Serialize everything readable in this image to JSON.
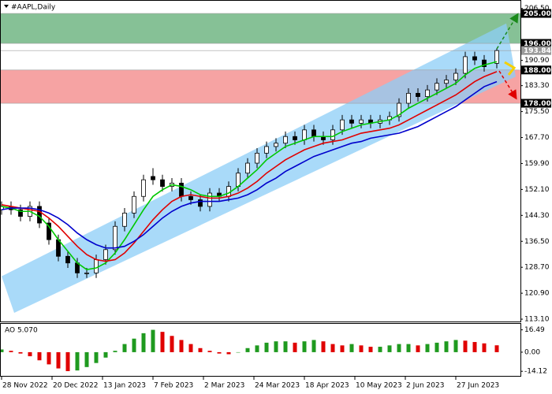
{
  "chart_data": [
    {
      "type": "candlestick",
      "title": "#AAPL,Daily",
      "x": [
        0,
        3,
        6,
        9,
        12,
        15,
        18,
        21,
        24,
        27,
        30,
        33,
        36,
        39,
        42,
        45,
        48,
        51,
        54,
        57,
        60,
        63,
        66,
        69,
        72,
        75,
        78,
        81,
        84,
        87,
        90,
        93,
        96,
        99,
        102,
        105,
        108,
        111,
        114,
        117,
        120,
        123,
        126,
        129,
        132,
        135,
        138,
        141,
        144,
        147,
        150,
        153,
        157
      ],
      "open": [
        146,
        147,
        146,
        144,
        147,
        142,
        137,
        132,
        130,
        127,
        127,
        131,
        134,
        141,
        145,
        150,
        156,
        155,
        153,
        154,
        150,
        149,
        147,
        151,
        150,
        153,
        157,
        160,
        163,
        165,
        166,
        168,
        167,
        170,
        168,
        167,
        170,
        173,
        172,
        173,
        172,
        173,
        174,
        178,
        181,
        180,
        182,
        184,
        185,
        187,
        192,
        191,
        190
      ],
      "high": [
        148.5,
        148.5,
        147.5,
        148.5,
        148.5,
        143.5,
        138.5,
        133.5,
        131.5,
        128.5,
        132.5,
        135.5,
        142.5,
        146.5,
        151.5,
        156.5,
        158.5,
        156.5,
        155.5,
        155.5,
        151.5,
        150.5,
        152.5,
        152.5,
        154.5,
        158.5,
        161.5,
        164.5,
        166.5,
        167.5,
        169.5,
        169.5,
        171.5,
        171.5,
        169.5,
        171.5,
        174.5,
        174.5,
        174.5,
        174.5,
        174.5,
        175.5,
        179.5,
        182.5,
        182.5,
        183.5,
        185.5,
        186.5,
        188.5,
        193.5,
        193.5,
        192.5,
        194.5
      ],
      "low": [
        144.5,
        144.5,
        142.5,
        142.5,
        140.5,
        135.5,
        130.5,
        128.5,
        125.5,
        125.5,
        125.5,
        129.5,
        132.5,
        139.5,
        143.5,
        148.5,
        153.5,
        151.5,
        151.5,
        148.5,
        147.5,
        145.5,
        145.5,
        148.5,
        148.5,
        151.5,
        155.5,
        158.5,
        161.5,
        163.5,
        164.5,
        165.5,
        165.5,
        166.5,
        165.5,
        165.5,
        168.5,
        170.5,
        170.5,
        170.5,
        170.5,
        171.5,
        172.5,
        176.5,
        178.5,
        178.5,
        180.5,
        182.5,
        183.5,
        185.5,
        189.5,
        187.5,
        188.5
      ],
      "close": [
        147,
        146,
        144,
        147,
        142,
        137,
        132,
        130,
        127,
        127,
        131,
        134,
        141,
        145,
        150,
        155,
        155,
        153,
        154,
        150,
        149,
        147,
        151,
        150,
        153,
        157,
        160,
        163,
        165,
        166,
        168,
        167,
        170,
        168,
        167,
        170,
        173,
        172,
        173,
        172,
        173,
        174,
        178,
        181,
        180,
        182,
        184,
        185,
        187,
        192,
        191,
        189,
        193.84
      ],
      "up_color": "#ffffff",
      "down_color": "#000000",
      "lines": [
        {
          "color": "#00c800",
          "values": [
            147,
            146.5,
            145.5,
            145.5,
            144,
            141,
            137,
            133.5,
            130,
            128,
            128.5,
            130,
            133,
            137,
            141.5,
            146,
            150,
            152,
            153.5,
            153,
            152,
            150.5,
            150,
            150,
            151,
            153,
            155.5,
            158,
            161,
            163,
            165,
            166,
            167,
            168,
            168,
            168,
            169.5,
            170.5,
            171.5,
            172,
            172.5,
            173,
            174.5,
            176.5,
            178,
            179.5,
            181,
            182.5,
            184,
            186.5,
            188.5,
            189.5,
            190.5
          ]
        },
        {
          "color": "#e00000",
          "values": [
            147.5,
            147,
            146.5,
            146,
            145.5,
            143.5,
            141,
            138,
            135,
            132.5,
            131,
            130.5,
            131,
            133,
            136,
            139.5,
            143,
            146,
            148.5,
            150,
            150.5,
            150,
            149.5,
            149.5,
            150,
            151,
            152.5,
            154.5,
            157,
            159,
            161,
            162.5,
            164,
            165,
            166,
            166.5,
            167,
            168,
            169,
            169.5,
            170,
            170.5,
            171.5,
            173,
            174.5,
            176,
            177.5,
            179,
            180.5,
            182.5,
            184.5,
            186,
            187.5
          ]
        },
        {
          "color": "#0000cc",
          "values": [
            146,
            146.5,
            146.5,
            146.5,
            146,
            145,
            143.5,
            141.5,
            139,
            137,
            135.5,
            134.5,
            134.5,
            135,
            136.5,
            138.5,
            141,
            143.5,
            145.5,
            147,
            148,
            148.5,
            148.5,
            148.5,
            149,
            149.5,
            150.5,
            152,
            154,
            155.5,
            157.5,
            159,
            160.5,
            162,
            163,
            164,
            165,
            166,
            166.5,
            167.5,
            168,
            168.5,
            169,
            170,
            171,
            172.5,
            174,
            175.5,
            177,
            179,
            181,
            183,
            184.5
          ]
        }
      ],
      "zones": [
        {
          "from": 196,
          "to": 205,
          "color": "#86c196"
        },
        {
          "from": 178,
          "to": 188,
          "color": "#f6a3a3"
        }
      ],
      "channel": {
        "color": "#8ccdf7",
        "x": [
          0,
          160
        ],
        "upper": [
          126,
          202
        ],
        "lower": [
          115,
          186
        ],
        "lower_x": [
          4,
          163
        ]
      },
      "levels": [
        {
          "value": 205,
          "label": "205.00",
          "color": "#000000"
        },
        {
          "value": 196,
          "label": "196.00",
          "color": "#000000"
        },
        {
          "value": 193.84,
          "label": "193.84",
          "color": "#9a9a9a"
        },
        {
          "value": 188,
          "label": "188.00",
          "color": "#000000"
        },
        {
          "value": 178,
          "label": "178.00",
          "color": "#000000"
        }
      ],
      "xlim": [
        -0.5,
        164.5
      ],
      "xticks": [
        {
          "value": 0,
          "label": "28 Nov 2022"
        },
        {
          "value": 16,
          "label": "20 Dec 2022"
        },
        {
          "value": 32,
          "label": "13 Jan 2023"
        },
        {
          "value": 48,
          "label": "7 Feb 2023"
        },
        {
          "value": 64,
          "label": "2 Mar 2023"
        },
        {
          "value": 80,
          "label": "24 Mar 2023"
        },
        {
          "value": 96,
          "label": "18 Apr 2023"
        },
        {
          "value": 112,
          "label": "10 May 2023"
        },
        {
          "value": 128,
          "label": "2 Jun 2023"
        },
        {
          "value": 144,
          "label": "27 Jun 2023"
        }
      ],
      "ylim": [
        112.4,
        208.8
      ],
      "yticks": [
        {
          "value": 113.1,
          "label": "113.10"
        },
        {
          "value": 120.9,
          "label": "120.90"
        },
        {
          "value": 128.7,
          "label": "128.70"
        },
        {
          "value": 136.5,
          "label": "136.50"
        },
        {
          "value": 144.3,
          "label": "144.30"
        },
        {
          "value": 152.1,
          "label": "152.10"
        },
        {
          "value": 159.9,
          "label": "159.90"
        },
        {
          "value": 167.7,
          "label": "167.70"
        },
        {
          "value": 175.5,
          "label": "175.50"
        },
        {
          "value": 183.3,
          "label": "183.30"
        },
        {
          "value": 190.9,
          "label": "190.90"
        },
        {
          "value": 206.5,
          "label": "206.50"
        }
      ]
    },
    {
      "type": "bar",
      "title": "AO 5.070",
      "x": [
        0,
        3,
        6,
        9,
        12,
        15,
        18,
        21,
        24,
        27,
        30,
        33,
        36,
        39,
        42,
        45,
        48,
        51,
        54,
        57,
        60,
        63,
        66,
        69,
        72,
        75,
        78,
        81,
        84,
        87,
        90,
        93,
        96,
        99,
        102,
        105,
        108,
        111,
        114,
        117,
        120,
        123,
        126,
        129,
        132,
        135,
        138,
        141,
        144,
        147,
        150,
        153,
        157
      ],
      "values": [
        2,
        1,
        -1,
        -3,
        -6,
        -9,
        -12,
        -14,
        -13.5,
        -11,
        -8,
        -4,
        1,
        6,
        10,
        14,
        16.49,
        15,
        12,
        9,
        6,
        3,
        1,
        -1,
        -1.5,
        0,
        3,
        5,
        7,
        8,
        8,
        7,
        8,
        9,
        8,
        6,
        5,
        6,
        5,
        4,
        4,
        5,
        6,
        6,
        5,
        6,
        7,
        8,
        9,
        8.5,
        7.5,
        6.5,
        5.07
      ],
      "up_color": "#1f9a1f",
      "down_color": "#e00000",
      "xlim": [
        -0.5,
        164.5
      ],
      "ylim": [
        -17.5,
        20.9
      ],
      "yticks": [
        {
          "value": 16.49,
          "label": "16.49"
        },
        {
          "value": 0,
          "label": "0.00"
        },
        {
          "value": -14.12,
          "label": "-14.12"
        }
      ]
    }
  ]
}
